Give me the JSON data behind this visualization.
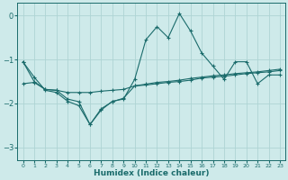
{
  "xlabel": "Humidex (Indice chaleur)",
  "x": [
    0,
    1,
    2,
    3,
    4,
    5,
    6,
    7,
    8,
    9,
    10,
    11,
    12,
    13,
    14,
    15,
    16,
    17,
    18,
    19,
    20,
    21,
    22,
    23
  ],
  "line1": [
    -1.05,
    -1.4,
    -1.7,
    -1.75,
    -1.95,
    -2.05,
    -2.48,
    -2.15,
    -1.95,
    -1.9,
    -1.45,
    -0.55,
    -0.25,
    -0.5,
    0.05,
    -0.35,
    -0.85,
    -1.15,
    -1.45,
    -1.05,
    -1.05,
    -1.55,
    -1.35,
    -1.35
  ],
  "line2": [
    -1.55,
    -1.52,
    -1.68,
    -1.7,
    -1.75,
    -1.75,
    -1.75,
    -1.72,
    -1.7,
    -1.68,
    -1.6,
    -1.58,
    -1.55,
    -1.52,
    -1.5,
    -1.47,
    -1.42,
    -1.4,
    -1.38,
    -1.35,
    -1.32,
    -1.3,
    -1.28,
    -1.25
  ],
  "line3": [
    -1.05,
    -1.5,
    -1.68,
    -1.7,
    -1.9,
    -1.96,
    -2.48,
    -2.12,
    -1.96,
    -1.88,
    -1.6,
    -1.56,
    -1.52,
    -1.5,
    -1.47,
    -1.43,
    -1.4,
    -1.37,
    -1.35,
    -1.32,
    -1.3,
    -1.28,
    -1.25,
    -1.22
  ],
  "bg_color": "#ceeaea",
  "grid_color": "#aed4d4",
  "line_color": "#1a6b6b",
  "ylim": [
    -3.3,
    0.3
  ],
  "yticks": [
    0,
    -1,
    -2,
    -3
  ],
  "xlim": [
    -0.5,
    23.5
  ],
  "figsize": [
    3.2,
    2.0
  ],
  "dpi": 100
}
